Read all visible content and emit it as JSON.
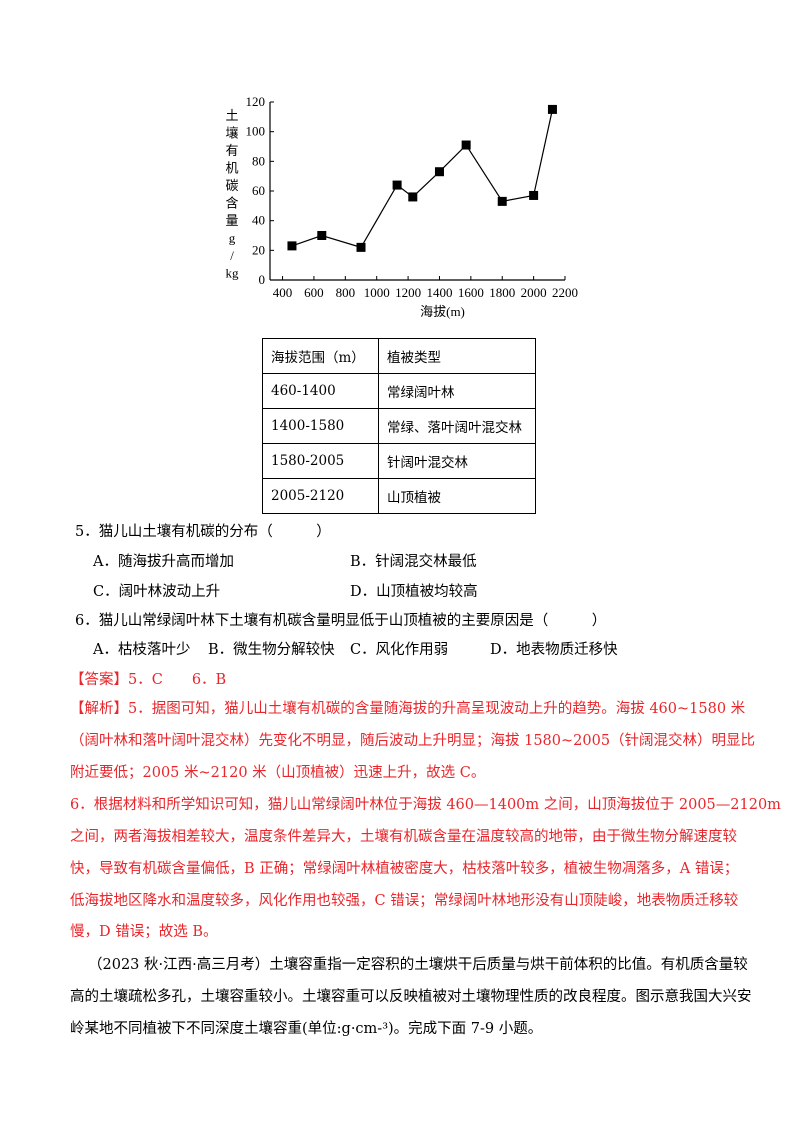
{
  "chart_data": {
    "type": "line",
    "ylabel_chars": [
      "土",
      "壤",
      "有",
      "机",
      "碳",
      "含",
      "量",
      "g",
      "/",
      "kg"
    ],
    "xlabel": "海拔(m)",
    "xlim": [
      320,
      2200
    ],
    "ylim": [
      0,
      120
    ],
    "xticks": [
      400,
      600,
      800,
      1000,
      1200,
      1400,
      1600,
      1800,
      2000,
      2200
    ],
    "yticks": [
      0,
      20,
      40,
      60,
      80,
      100,
      120
    ],
    "grid": false,
    "marker": "square",
    "x": [
      460,
      650,
      900,
      1130,
      1230,
      1400,
      1570,
      1800,
      2000,
      2120
    ],
    "y": [
      23,
      30,
      22,
      64,
      56,
      73,
      91,
      53,
      57,
      115
    ]
  },
  "table": {
    "headers": [
      "海拔范围（m）",
      "植被类型"
    ],
    "rows": [
      [
        "460-1400",
        "常绿阔叶林"
      ],
      [
        "1400-1580",
        "常绿、落叶阔叶混交林"
      ],
      [
        "1580-2005",
        "针阔叶混交林"
      ],
      [
        "2005-2120",
        "山顶植被"
      ]
    ]
  },
  "q5": {
    "stem": "5．猫儿山土壤有机碳的分布（　　　）",
    "a": "A．随海拔升高而增加",
    "b": "B．针阔混交林最低",
    "c": "C．阔叶林波动上升",
    "d": "D．山顶植被均较高"
  },
  "q6": {
    "stem": "6．猫儿山常绿阔叶林下土壤有机碳含量明显低于山顶植被的主要原因是（　　　）",
    "a": "A．枯枝落叶少",
    "b": "B．微生物分解较快",
    "c": "C．风化作用弱",
    "d": "D．地表物质迁移快"
  },
  "answer": "【答案】5．C　　6．B",
  "analysis": [
    "【解析】5．据图可知，猫儿山土壤有机碳的含量随海拔的升高呈现波动上升的趋势。海拔 460~1580 米",
    "（阔叶林和落叶阔叶混交林）先变化不明显，随后波动上升明显；海拔 1580~2005（针阔混交林）明显比",
    "附近要低；2005 米~2120 米（山顶植被）迅速上升，故选 C。",
    "6．根据材料和所学知识可知，猫儿山常绿阔叶林位于海拔 460—1400m 之间，山顶海拔位于 2005—2120m",
    "之间，两者海拔相差较大，温度条件差异大，土壤有机碳含量在温度较高的地带，由于微生物分解速度较",
    "快，导致有机碳含量偏低，B 正确；常绿阔叶林植被密度大，枯枝落叶较多，植被生物凋落多，A 错误；",
    "低海拔地区降水和温度较多，风化作用也较强，C 错误；常绿阔叶林地形没有山顶陡峻，地表物质迁移较",
    "慢，D 错误；故选 B。"
  ],
  "passage": [
    "（2023 秋·江西·高三月考）土壤容重指一定容积的土壤烘干后质量与烘干前体积的比值。有机质含量较",
    "高的土壤疏松多孔，土壤容重较小。土壤容重可以反映植被对土壤物理性质的改良程度。图示意我国大兴安",
    "岭某地不同植被下不同深度土壤容重(单位:g·cm-³)。完成下面 7-9 小题。"
  ]
}
